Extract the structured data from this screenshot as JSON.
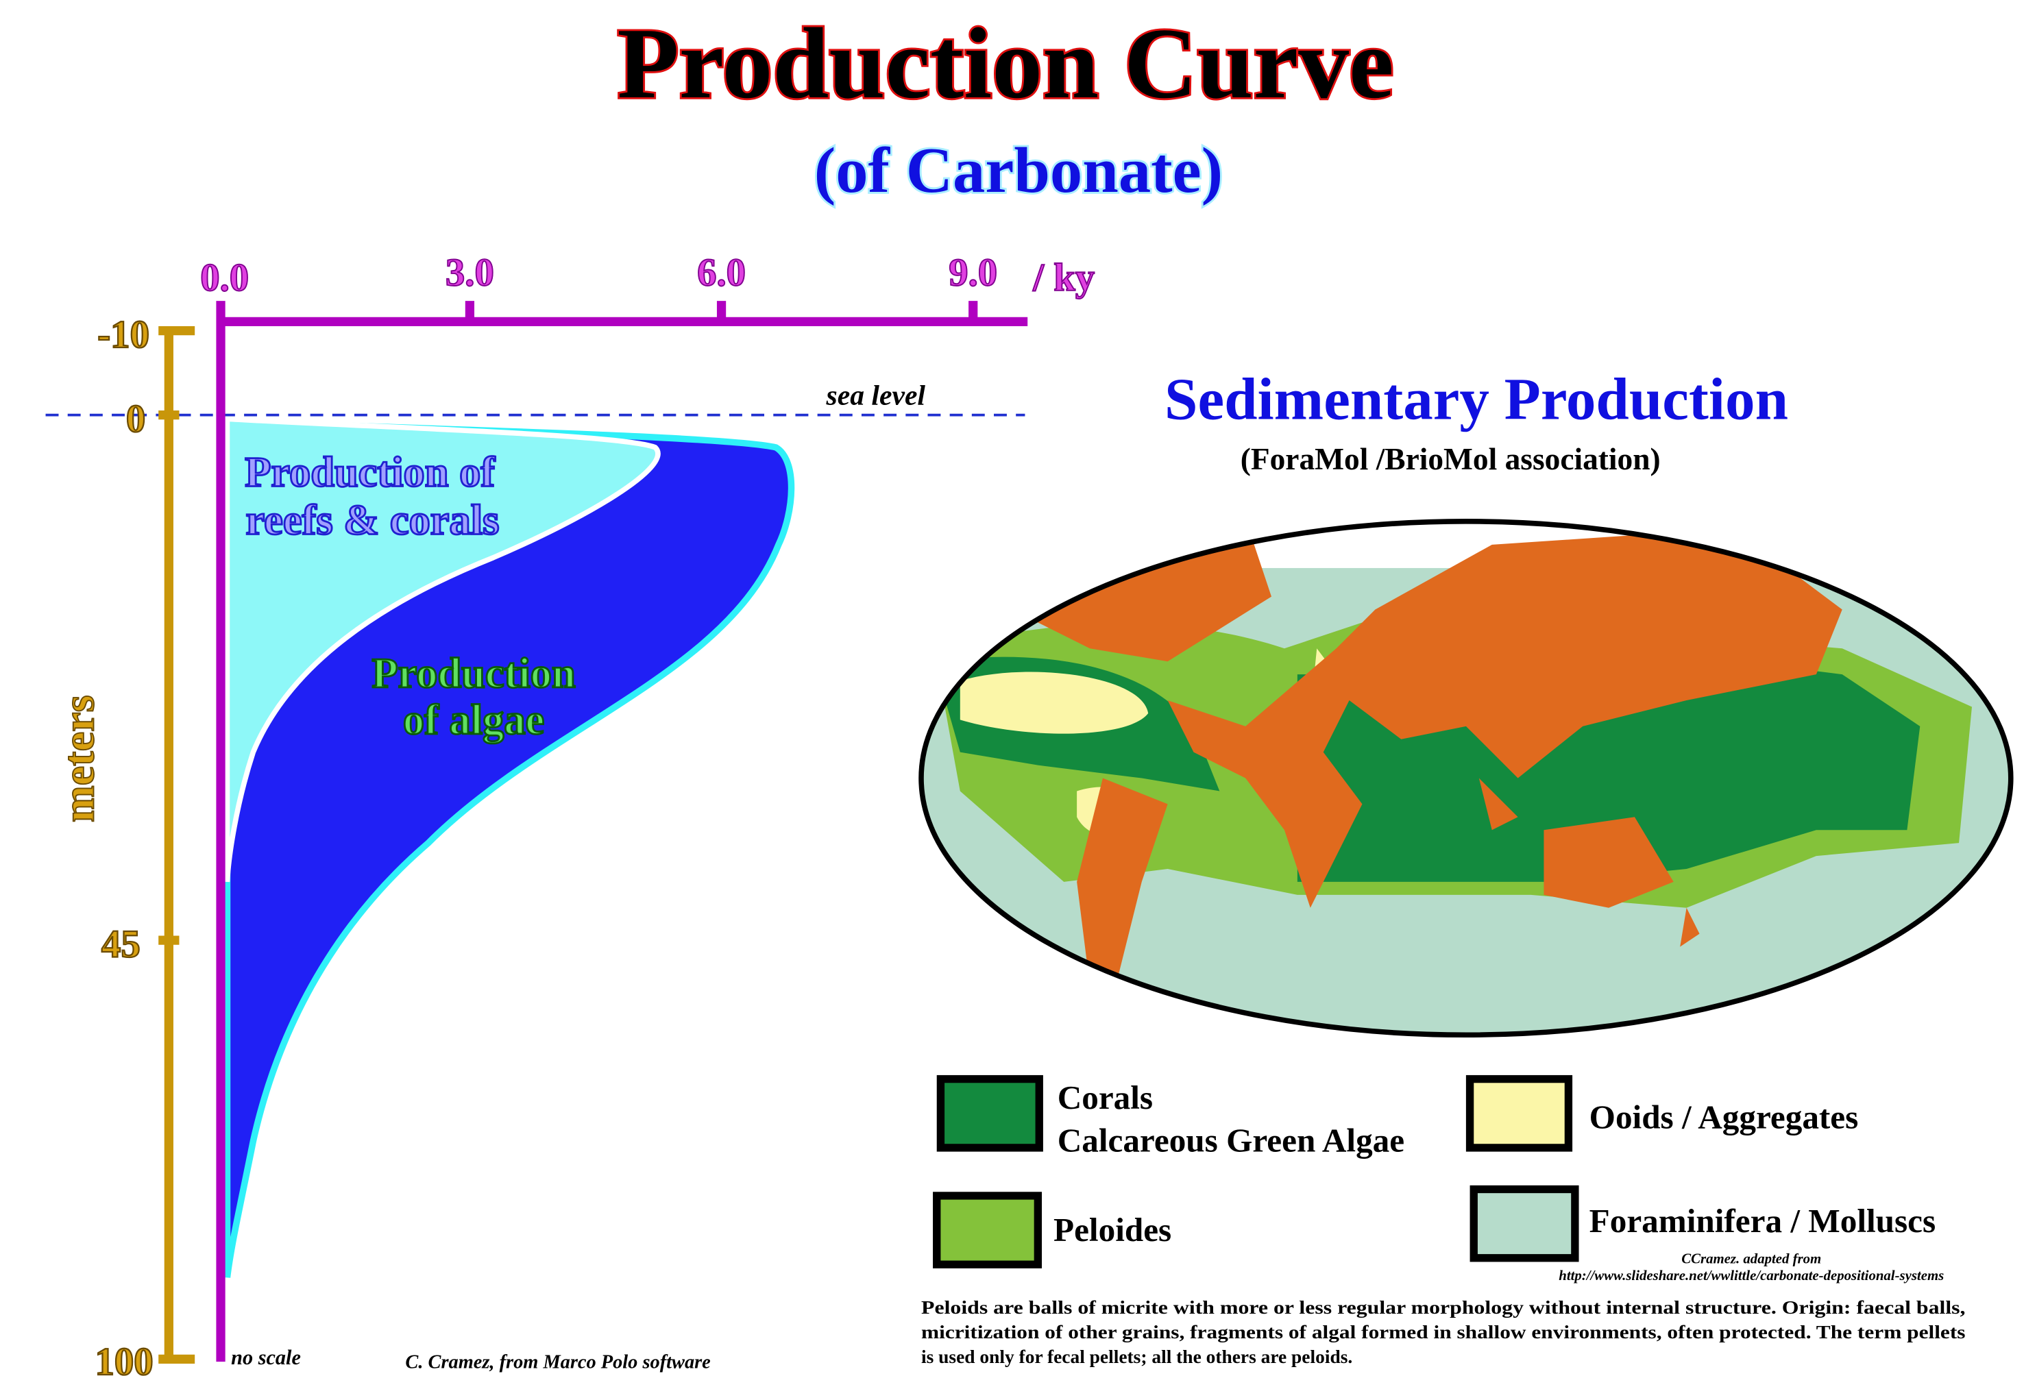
{
  "title": "Production Curve",
  "subtitle": "(of Carbonate)",
  "curve": {
    "top_axis": {
      "ticks": [
        "0.0",
        "3.0",
        "6.0",
        "9.0"
      ],
      "unit": "/ ky"
    },
    "left_axis": {
      "label": "meters",
      "ticks": [
        "-10",
        "0",
        "45",
        "100"
      ]
    },
    "sea_level_label": "sea level",
    "reefs_label": [
      "Production of",
      "reefs & corals"
    ],
    "algae_label": [
      "Production",
      "of algae"
    ],
    "no_scale": "no scale",
    "credit": "C. Cramez, from Marco Polo software",
    "colors": {
      "axis_top": "#b000c0",
      "axis_left": "#c8960a",
      "algae": "#2020f5",
      "reefs": "#8ef8f8",
      "sea_level": "#2030d0"
    }
  },
  "map": {
    "title": "Sedimentary Production",
    "subtitle": "(ForaMol /BrioMol association)",
    "colors": {
      "land": "#e06a1e",
      "corals": "#138a3e",
      "peloides": "#84c23a",
      "ooids": "#fbf6a8",
      "foraminifera": "#b6dccb"
    }
  },
  "legend": [
    {
      "lines": [
        "Corals",
        "Calcareous Green Algae"
      ],
      "color": "#138a3e"
    },
    {
      "lines": [
        "Ooids / Aggregates"
      ],
      "color": "#fbf6a8"
    },
    {
      "lines": [
        "Peloides"
      ],
      "color": "#84c23a"
    },
    {
      "lines": [
        "Foraminifera / Molluscs"
      ],
      "color": "#b6dccb"
    }
  ],
  "source_credit": [
    "CCramez. adapted from",
    "http://www.slideshare.net/wwlittle/carbonate-depositional-systems"
  ],
  "description": [
    "Peloids are balls of micrite with more or less regular morphology without internal structure. Origin: faecal balls,",
    "micritization of other grains, fragments of algal formed in shallow environments, often protected. The term pellets",
    "is used only for fecal pellets; all the others are peloids."
  ]
}
